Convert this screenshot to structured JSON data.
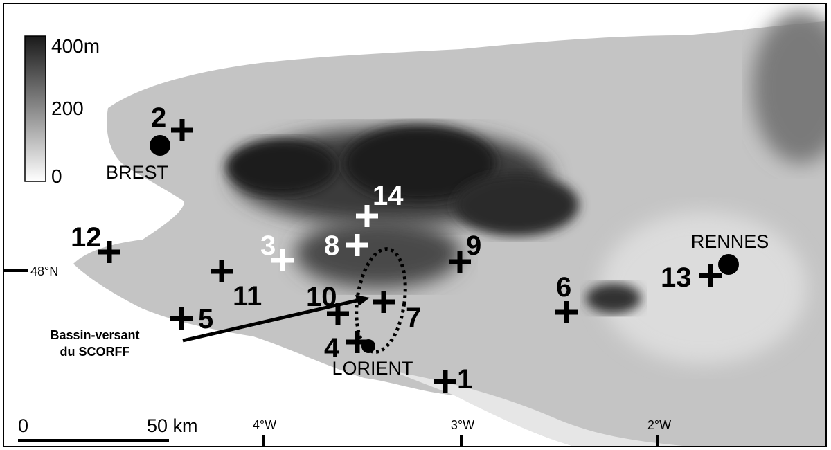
{
  "legend": {
    "max_label": "400m",
    "mid_label": "200",
    "min_label": "0"
  },
  "cities": [
    {
      "name": "BREST"
    },
    {
      "name": "LORIENT"
    },
    {
      "name": "RENNES"
    }
  ],
  "sites": [
    "1",
    "2",
    "3",
    "4",
    "5",
    "6",
    "7",
    "8",
    "9",
    "10",
    "11",
    "12",
    "13",
    "14"
  ],
  "watershed_label": [
    "Bassin-versant",
    "du SCORFF"
  ],
  "latitude_label": "48°N",
  "longitudes": [
    "4°W",
    "3°W",
    "2°W"
  ],
  "scale": {
    "start": "0",
    "end": "50 km"
  },
  "colors": {
    "marker_dark": "#000000",
    "marker_light": "#ffffff",
    "high_elevation": "#1a1a1a",
    "low_elevation": "#f2f2f2"
  }
}
